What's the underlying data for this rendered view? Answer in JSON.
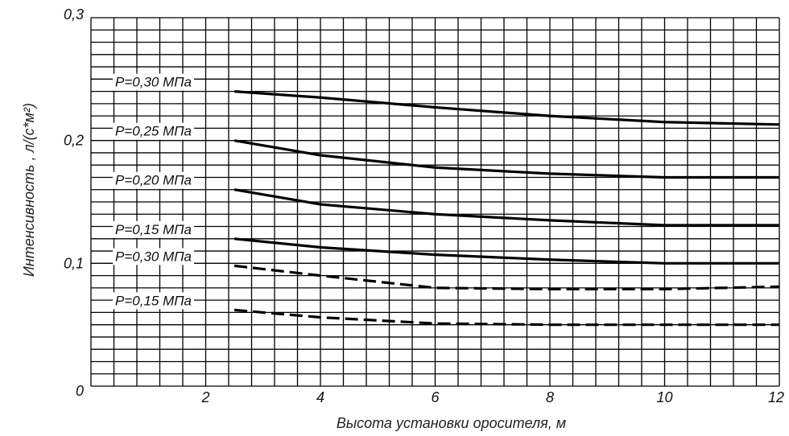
{
  "chart_data": {
    "type": "line",
    "title": "",
    "xlabel": "Высота установки оросителя, м",
    "ylabel": "Интенсивность , л/(с*м²)",
    "xlim": [
      0,
      12
    ],
    "ylim": [
      0,
      0.3
    ],
    "x_ticks": [
      "2",
      "4",
      "6",
      "8",
      "10",
      "12"
    ],
    "x_tick_values": [
      2,
      4,
      6,
      8,
      10,
      12
    ],
    "y_ticks": [
      "0",
      "0,1",
      "0,2",
      "0,3"
    ],
    "y_tick_values": [
      0,
      0.1,
      0.2,
      0.3
    ],
    "grid": true,
    "series": [
      {
        "name": "P=0,30 МПа",
        "style": "solid",
        "x": [
          2.5,
          4,
          6,
          8,
          10,
          12
        ],
        "y": [
          0.24,
          0.235,
          0.227,
          0.22,
          0.215,
          0.213
        ]
      },
      {
        "name": "P=0,25 МПа",
        "style": "solid",
        "x": [
          2.5,
          4,
          6,
          8,
          10,
          12
        ],
        "y": [
          0.2,
          0.188,
          0.178,
          0.173,
          0.17,
          0.17
        ]
      },
      {
        "name": "P=0,20 МПа",
        "style": "solid",
        "x": [
          2.5,
          4,
          6,
          8,
          10,
          12
        ],
        "y": [
          0.16,
          0.148,
          0.14,
          0.135,
          0.131,
          0.131
        ]
      },
      {
        "name": "P=0,15 МПа",
        "style": "solid",
        "x": [
          2.5,
          4,
          6,
          8,
          10,
          12
        ],
        "y": [
          0.12,
          0.113,
          0.107,
          0.103,
          0.1,
          0.1
        ]
      },
      {
        "name": "P=0,30 МПа",
        "style": "dashed",
        "x": [
          2.5,
          4,
          6,
          8,
          10,
          12
        ],
        "y": [
          0.098,
          0.09,
          0.08,
          0.079,
          0.079,
          0.081
        ]
      },
      {
        "name": "P=0,15 МПа",
        "style": "dashed",
        "x": [
          2.5,
          4,
          6,
          8,
          10,
          12
        ],
        "y": [
          0.062,
          0.056,
          0.051,
          0.05,
          0.05,
          0.05
        ]
      }
    ]
  }
}
